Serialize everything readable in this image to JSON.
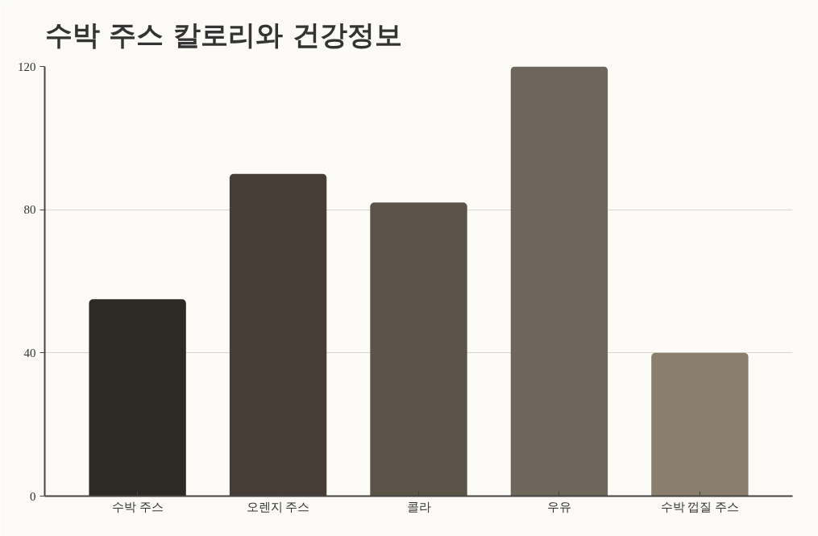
{
  "chart_data": {
    "type": "bar",
    "title": "수박 주스 칼로리와 건강정보",
    "categories": [
      "수박 주스",
      "오렌지 주스",
      "콜라",
      "우유",
      "수박 껍질 주스"
    ],
    "values": [
      55,
      90,
      82,
      120,
      40
    ],
    "colors": [
      "#2d2a25",
      "#463d36",
      "#5b5347",
      "#6e665a",
      "#8a7e6e"
    ],
    "ylim": [
      0,
      120
    ],
    "yticks": [
      0,
      40,
      80,
      120
    ],
    "grid": "y"
  }
}
